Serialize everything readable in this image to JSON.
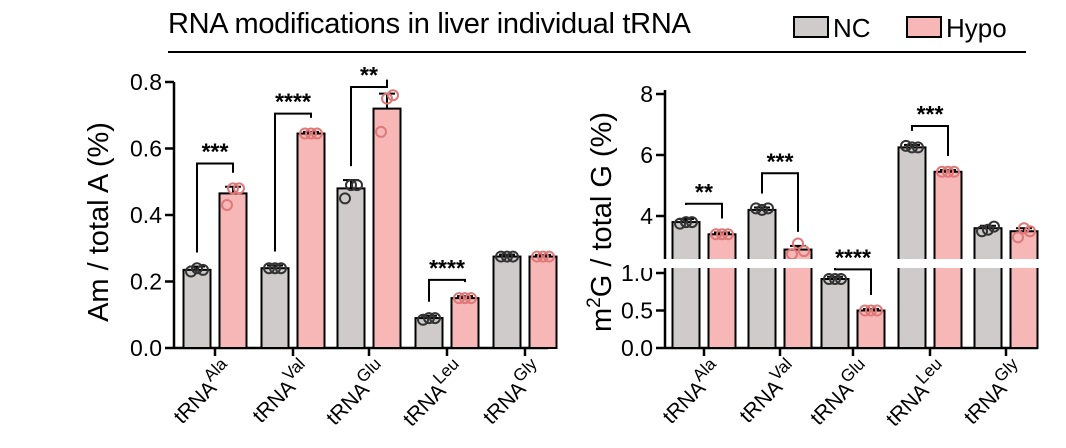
{
  "title": "RNA modifications in liver individual tRNA",
  "legend": [
    {
      "label": "NC",
      "fill": "#cfcbcb",
      "point": "#333333"
    },
    {
      "label": "Hypo",
      "fill": "#f7b7b7",
      "point": "#e07878"
    }
  ],
  "chart_data": [
    {
      "type": "bar",
      "ylabel": "Am / total A (%)",
      "ylim": [
        0,
        0.8
      ],
      "yticks": [
        "0.0",
        "0.2",
        "0.4",
        "0.6",
        "0.8"
      ],
      "categories": [
        {
          "base": "tRNA",
          "sup": "Ala"
        },
        {
          "base": "tRNA",
          "sup": "Val"
        },
        {
          "base": "tRNA",
          "sup": "Glu"
        },
        {
          "base": "tRNA",
          "sup": "Leu"
        },
        {
          "base": "tRNA",
          "sup": "Gly"
        }
      ],
      "series": [
        {
          "name": "NC",
          "values": [
            0.235,
            0.24,
            0.48,
            0.09,
            0.275
          ],
          "errors": [
            0.01,
            0.008,
            0.025,
            0.007,
            0.006
          ],
          "points": [
            [
              0.23,
              0.24,
              0.235
            ],
            [
              0.24,
              0.24,
              0.24
            ],
            [
              0.45,
              0.49,
              0.49
            ],
            [
              0.085,
              0.09,
              0.09
            ],
            [
              0.275,
              0.275,
              0.275
            ]
          ]
        },
        {
          "name": "Hypo",
          "values": [
            0.465,
            0.645,
            0.72,
            0.15,
            0.275
          ],
          "errors": [
            0.02,
            0.005,
            0.045,
            0.006,
            0.005
          ],
          "points": [
            [
              0.43,
              0.48,
              0.48
            ],
            [
              0.645,
              0.645,
              0.645
            ],
            [
              0.65,
              0.75,
              0.76
            ],
            [
              0.15,
              0.15,
              0.15
            ],
            [
              0.275,
              0.275,
              0.275
            ]
          ]
        }
      ],
      "significance": [
        {
          "category": 0,
          "label": "***",
          "y": 0.555
        },
        {
          "category": 1,
          "label": "****",
          "y": 0.705
        },
        {
          "category": 2,
          "label": "**",
          "y": 0.785
        },
        {
          "category": 3,
          "label": "****",
          "y": 0.205
        }
      ]
    },
    {
      "type": "bar",
      "ylabel_prefix": "m",
      "ylabel_sup": "2",
      "ylabel_rest": "G / total G (%)",
      "y_break": {
        "lower": [
          0,
          1.0
        ],
        "upper": [
          2.2,
          8
        ]
      },
      "yticks_lower": [
        "0.0",
        "0.5",
        "1.0"
      ],
      "yticks_upper": [
        "4",
        "6",
        "8"
      ],
      "categories": [
        {
          "base": "tRNA",
          "sup": "Ala"
        },
        {
          "base": "tRNA",
          "sup": "Val"
        },
        {
          "base": "tRNA",
          "sup": "Glu"
        },
        {
          "base": "tRNA",
          "sup": "Leu"
        },
        {
          "base": "tRNA",
          "sup": "Gly"
        }
      ],
      "series": [
        {
          "name": "NC",
          "values": [
            3.8,
            4.2,
            0.92,
            6.25,
            3.6
          ],
          "errors": [
            0.1,
            0.08,
            0.03,
            0.08,
            0.08
          ],
          "points": [
            [
              3.75,
              3.8,
              3.8
            ],
            [
              4.25,
              4.2,
              4.25
            ],
            [
              0.92,
              0.92,
              0.92
            ],
            [
              6.3,
              6.25,
              6.25
            ],
            [
              3.5,
              3.55,
              3.65
            ]
          ]
        },
        {
          "name": "Hypo",
          "values": [
            3.4,
            2.9,
            0.5,
            5.45,
            3.5
          ],
          "errors": [
            0.06,
            0.12,
            0.02,
            0.06,
            0.1
          ],
          "points": [
            [
              3.4,
              3.4,
              3.4
            ],
            [
              2.75,
              3.1,
              2.85
            ],
            [
              0.5,
              0.5,
              0.5
            ],
            [
              5.45,
              5.45,
              5.45
            ],
            [
              3.3,
              3.6,
              3.5
            ]
          ]
        }
      ],
      "significance": [
        {
          "category": 0,
          "label": "**",
          "y": 4.4
        },
        {
          "category": 1,
          "label": "***",
          "y": 5.4
        },
        {
          "category": 2,
          "label": "****",
          "y": 2.25
        },
        {
          "category": 3,
          "label": "***",
          "y": 6.95
        }
      ]
    }
  ]
}
